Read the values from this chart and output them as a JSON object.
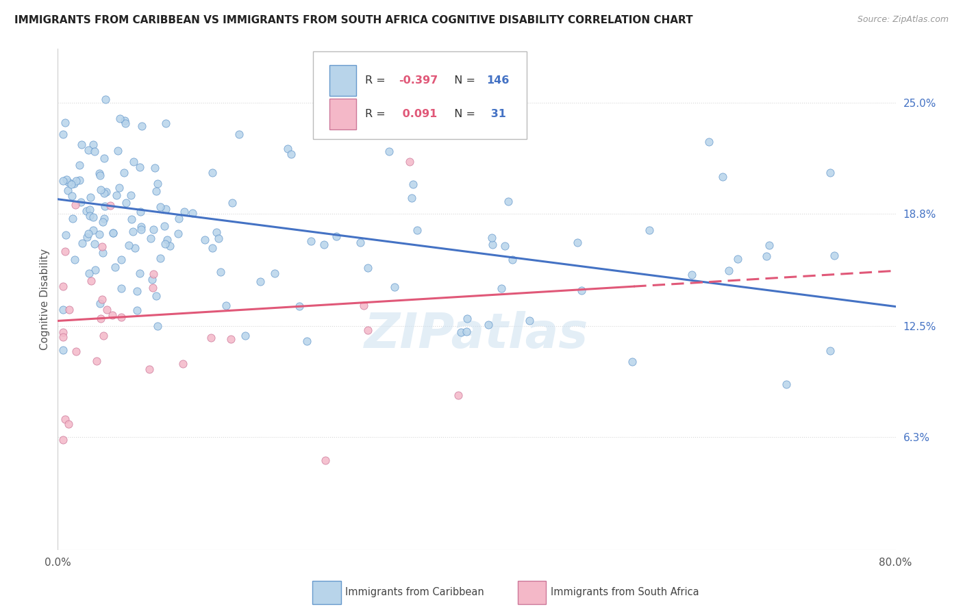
{
  "title": "IMMIGRANTS FROM CARIBBEAN VS IMMIGRANTS FROM SOUTH AFRICA COGNITIVE DISABILITY CORRELATION CHART",
  "source": "Source: ZipAtlas.com",
  "ylabel": "Cognitive Disability",
  "y_axis_ticks": [
    "25.0%",
    "18.8%",
    "12.5%",
    "6.3%"
  ],
  "y_axis_values": [
    0.25,
    0.188,
    0.125,
    0.063
  ],
  "x_min": 0.0,
  "x_max": 0.8,
  "y_min": 0.0,
  "y_max": 0.28,
  "series1_name": "Immigrants from Caribbean",
  "series1_color": "#b8d4ea",
  "series1_edge_color": "#6699cc",
  "series1_line_color": "#4472c4",
  "series1_R": -0.397,
  "series1_N": 146,
  "series2_name": "Immigrants from South Africa",
  "series2_color": "#f4b8c8",
  "series2_edge_color": "#cc7799",
  "series2_line_color": "#e05878",
  "series2_R": 0.091,
  "series2_N": 31,
  "legend_R_color": "#e05878",
  "legend_N_color": "#4472c4",
  "watermark": "ZIPatlas",
  "background_color": "#ffffff",
  "grid_color": "#d8d8d8",
  "line1_x0": 0.0,
  "line1_y0": 0.196,
  "line1_x1": 0.8,
  "line1_y1": 0.136,
  "line2_x0": 0.0,
  "line2_y0": 0.128,
  "line2_x1": 0.8,
  "line2_y1": 0.156,
  "line2_solid_end": 0.55
}
